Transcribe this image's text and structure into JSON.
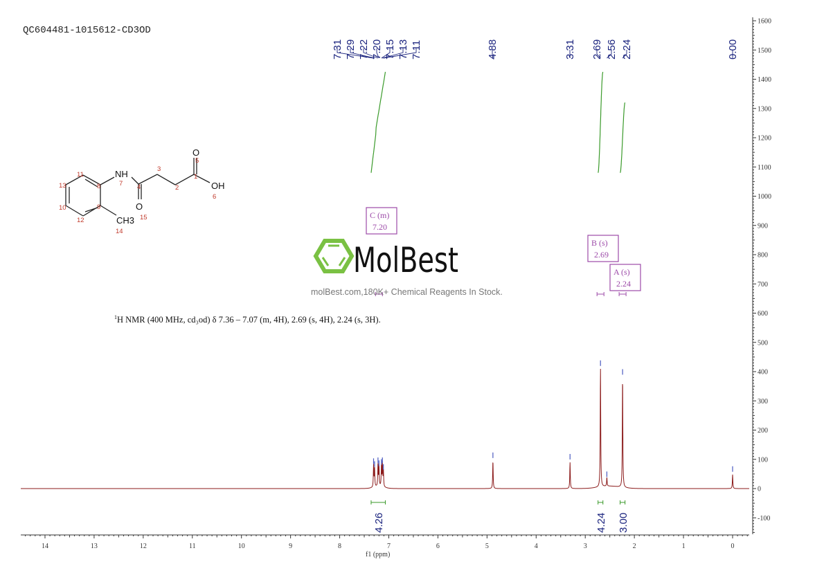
{
  "title": "QC604481-1015612-CD3OD",
  "description": {
    "prefix": "1",
    "text": "H NMR (400 MHz, cd₃od) δ 7.36 – 7.07 (m, 4H), 2.69 (s, 4H), 2.24 (s, 3H)."
  },
  "watermark": {
    "brand": "MolBest",
    "tagline": "molBest.com,180K+ Chemical Reagents In Stock."
  },
  "molecule": {
    "atoms": [
      "NH",
      "O",
      "O",
      "OH",
      "CH3"
    ],
    "atom_numbers": [
      "1",
      "2",
      "3",
      "4",
      "5",
      "6",
      "7",
      "8",
      "9",
      "10",
      "11",
      "12",
      "13",
      "14",
      "15"
    ]
  },
  "colors": {
    "spectrum": "#8b1a1a",
    "integral": "#3a9a2a",
    "peak_label": "#1a237e",
    "multiplet_box": "#9c4aa8",
    "logo_green": "#7ac143"
  },
  "chart_data": {
    "type": "line",
    "xlabel": "f1 (ppm)",
    "xlim": [
      14.5,
      -0.3
    ],
    "ylim": [
      -160,
      1600
    ],
    "x_ticks": [
      14,
      13,
      12,
      11,
      10,
      9,
      8,
      7,
      6,
      5,
      4,
      3,
      2,
      1,
      0
    ],
    "y_ticks": [
      -100,
      0,
      100,
      200,
      300,
      400,
      500,
      600,
      700,
      800,
      900,
      1000,
      1100,
      1200,
      1300,
      1400,
      1500,
      1600
    ],
    "peaks": [
      {
        "ppm": 7.31,
        "height": 75
      },
      {
        "ppm": 7.29,
        "height": 65
      },
      {
        "ppm": 7.22,
        "height": 78
      },
      {
        "ppm": 7.2,
        "height": 68
      },
      {
        "ppm": 7.15,
        "height": 72
      },
      {
        "ppm": 7.13,
        "height": 78
      },
      {
        "ppm": 7.11,
        "height": 55
      },
      {
        "ppm": 4.88,
        "height": 95
      },
      {
        "ppm": 3.31,
        "height": 90
      },
      {
        "ppm": 2.69,
        "height": 410
      },
      {
        "ppm": 2.56,
        "height": 30
      },
      {
        "ppm": 2.24,
        "height": 380
      },
      {
        "ppm": 0.0,
        "height": 48
      }
    ],
    "peak_labels": [
      "7.31",
      "7.29",
      "7.22",
      "7.20",
      "7.15",
      "7.13",
      "7.11",
      "4.88",
      "3.31",
      "2.69",
      "2.56",
      "2.24",
      "0.00"
    ],
    "integrals": [
      {
        "from": 7.36,
        "to": 7.07,
        "value": "4.26"
      },
      {
        "from": 2.74,
        "to": 2.64,
        "value": "4.24"
      },
      {
        "from": 2.29,
        "to": 2.19,
        "value": "3.00"
      }
    ],
    "multiplets": [
      {
        "label": "C (m)",
        "shift": "7.20"
      },
      {
        "label": "B (s)",
        "shift": "2.69"
      },
      {
        "label": "A (s)",
        "shift": "2.24"
      }
    ]
  }
}
